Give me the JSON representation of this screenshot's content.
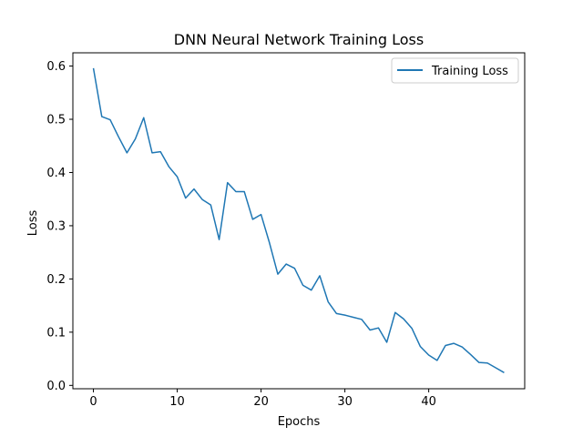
{
  "chart_data": {
    "type": "line",
    "title": "DNN Neural Network Training Loss",
    "xlabel": "Epochs",
    "ylabel": "Loss",
    "xlim": [
      -2.45,
      51.45
    ],
    "ylim": [
      -0.0063,
      0.6249
    ],
    "x_ticks": [
      0,
      10,
      20,
      30,
      40
    ],
    "y_ticks": [
      0.0,
      0.1,
      0.2,
      0.3,
      0.4,
      0.5,
      0.6
    ],
    "x_tick_labels": [
      "0",
      "10",
      "20",
      "30",
      "40"
    ],
    "y_tick_labels": [
      "0.0",
      "0.1",
      "0.2",
      "0.3",
      "0.4",
      "0.5",
      "0.6"
    ],
    "grid": false,
    "legend": {
      "position": "top-right"
    },
    "series": [
      {
        "name": "Training Loss",
        "color": "#1f77b4",
        "x": [
          0,
          1,
          2,
          3,
          4,
          5,
          6,
          7,
          8,
          9,
          10,
          11,
          12,
          13,
          14,
          15,
          16,
          17,
          18,
          19,
          20,
          21,
          22,
          23,
          24,
          25,
          26,
          27,
          28,
          29,
          30,
          31,
          32,
          33,
          34,
          35,
          36,
          37,
          38,
          39,
          40,
          41,
          42,
          43,
          44,
          45,
          46,
          47,
          48,
          49
        ],
        "y": [
          0.596,
          0.505,
          0.499,
          0.467,
          0.437,
          0.463,
          0.503,
          0.437,
          0.439,
          0.411,
          0.392,
          0.352,
          0.369,
          0.349,
          0.339,
          0.274,
          0.381,
          0.364,
          0.364,
          0.312,
          0.321,
          0.268,
          0.209,
          0.228,
          0.22,
          0.188,
          0.179,
          0.206,
          0.157,
          0.135,
          0.132,
          0.128,
          0.124,
          0.104,
          0.108,
          0.081,
          0.137,
          0.125,
          0.107,
          0.073,
          0.057,
          0.047,
          0.075,
          0.079,
          0.072,
          0.058,
          0.043,
          0.042,
          0.033,
          0.024
        ]
      }
    ]
  }
}
